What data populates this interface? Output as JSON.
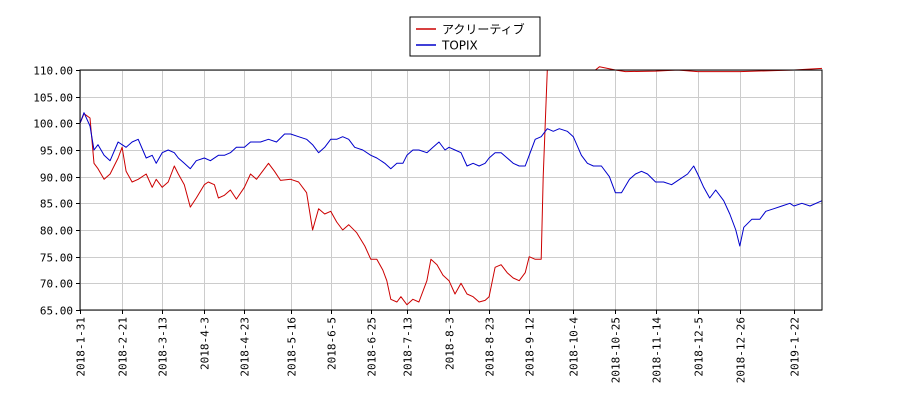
{
  "chart_data": {
    "type": "line",
    "ylim": [
      65,
      110
    ],
    "y_ticks": [
      "110.00",
      "105.00",
      "100.00",
      "95.00",
      "90.00",
      "85.00",
      "80.00",
      "75.00",
      "70.00",
      "65.00"
    ],
    "x_range": [
      "2018-01-31",
      "2019-02-05"
    ],
    "x_ticks": [
      "2018-1-31",
      "2018-2-21",
      "2018-3-13",
      "2018-4-3",
      "2018-4-23",
      "2018-5-16",
      "2018-6-5",
      "2018-6-25",
      "2018-7-13",
      "2018-8-3",
      "2018-8-23",
      "2018-9-12",
      "2018-10-4",
      "2018-10-25",
      "2018-11-14",
      "2018-12-5",
      "2018-12-26",
      "2019-1-22"
    ],
    "grid": true,
    "legend_position": "top-center",
    "series": [
      {
        "name": "アクリーティブ",
        "color": "#cc0000",
        "points": [
          [
            "2018-01-31",
            100.0
          ],
          [
            "2018-02-02",
            101.8
          ],
          [
            "2018-02-05",
            101.0
          ],
          [
            "2018-02-07",
            92.5
          ],
          [
            "2018-02-09",
            91.5
          ],
          [
            "2018-02-12",
            89.5
          ],
          [
            "2018-02-15",
            90.5
          ],
          [
            "2018-02-19",
            93.5
          ],
          [
            "2018-02-21",
            95.5
          ],
          [
            "2018-02-23",
            91.0
          ],
          [
            "2018-02-26",
            89.0
          ],
          [
            "2018-03-01",
            89.5
          ],
          [
            "2018-03-05",
            90.5
          ],
          [
            "2018-03-08",
            88.0
          ],
          [
            "2018-03-10",
            89.5
          ],
          [
            "2018-03-13",
            88.0
          ],
          [
            "2018-03-16",
            89.0
          ],
          [
            "2018-03-19",
            92.0
          ],
          [
            "2018-03-21",
            90.5
          ],
          [
            "2018-03-24",
            88.5
          ],
          [
            "2018-03-27",
            84.3
          ],
          [
            "2018-03-30",
            86.0
          ],
          [
            "2018-04-03",
            88.5
          ],
          [
            "2018-04-05",
            89.0
          ],
          [
            "2018-04-08",
            88.5
          ],
          [
            "2018-04-10",
            86.0
          ],
          [
            "2018-04-13",
            86.5
          ],
          [
            "2018-04-16",
            87.5
          ],
          [
            "2018-04-19",
            85.8
          ],
          [
            "2018-04-23",
            88.0
          ],
          [
            "2018-04-26",
            90.5
          ],
          [
            "2018-04-29",
            89.5
          ],
          [
            "2018-05-02",
            91.0
          ],
          [
            "2018-05-05",
            92.5
          ],
          [
            "2018-05-08",
            91.0
          ],
          [
            "2018-05-11",
            89.3
          ],
          [
            "2018-05-16",
            89.5
          ],
          [
            "2018-05-20",
            89.0
          ],
          [
            "2018-05-24",
            87.0
          ],
          [
            "2018-05-27",
            80.0
          ],
          [
            "2018-05-30",
            84.0
          ],
          [
            "2018-06-02",
            83.0
          ],
          [
            "2018-06-05",
            83.5
          ],
          [
            "2018-06-08",
            81.5
          ],
          [
            "2018-06-11",
            80.0
          ],
          [
            "2018-06-14",
            81.0
          ],
          [
            "2018-06-18",
            79.5
          ],
          [
            "2018-06-22",
            77.0
          ],
          [
            "2018-06-25",
            74.5
          ],
          [
            "2018-06-28",
            74.5
          ],
          [
            "2018-07-01",
            72.5
          ],
          [
            "2018-07-03",
            70.5
          ],
          [
            "2018-07-05",
            67.0
          ],
          [
            "2018-07-08",
            66.5
          ],
          [
            "2018-07-10",
            67.5
          ],
          [
            "2018-07-13",
            66.0
          ],
          [
            "2018-07-16",
            67.0
          ],
          [
            "2018-07-19",
            66.5
          ],
          [
            "2018-07-23",
            70.5
          ],
          [
            "2018-07-25",
            74.5
          ],
          [
            "2018-07-28",
            73.5
          ],
          [
            "2018-07-31",
            71.5
          ],
          [
            "2018-08-03",
            70.5
          ],
          [
            "2018-08-06",
            68.0
          ],
          [
            "2018-08-09",
            70.0
          ],
          [
            "2018-08-12",
            68.0
          ],
          [
            "2018-08-15",
            67.5
          ],
          [
            "2018-08-18",
            66.5
          ],
          [
            "2018-08-21",
            66.8
          ],
          [
            "2018-08-23",
            67.5
          ],
          [
            "2018-08-26",
            73.0
          ],
          [
            "2018-08-29",
            73.5
          ],
          [
            "2018-09-01",
            72.0
          ],
          [
            "2018-09-04",
            71.0
          ],
          [
            "2018-09-07",
            70.5
          ],
          [
            "2018-09-10",
            72.0
          ],
          [
            "2018-09-12",
            75.0
          ],
          [
            "2018-09-15",
            74.5
          ],
          [
            "2018-09-18",
            74.5
          ],
          [
            "2018-09-19",
            90.0
          ],
          [
            "2018-09-21",
            110.0
          ],
          [
            "2018-10-04",
            110.0
          ],
          [
            "2018-10-15",
            110.0
          ],
          [
            "2018-10-17",
            110.6
          ],
          [
            "2018-10-25",
            110.0
          ],
          [
            "2018-10-30",
            109.7
          ],
          [
            "2018-11-14",
            109.8
          ],
          [
            "2018-11-25",
            110.0
          ],
          [
            "2018-12-05",
            109.7
          ],
          [
            "2018-12-26",
            109.7
          ],
          [
            "2019-01-22",
            110.0
          ],
          [
            "2019-02-05",
            110.3
          ]
        ]
      },
      {
        "name": "TOPIX",
        "color": "#0000cc",
        "points": [
          [
            "2018-01-31",
            100.0
          ],
          [
            "2018-02-02",
            102.0
          ],
          [
            "2018-02-05",
            99.5
          ],
          [
            "2018-02-07",
            95.0
          ],
          [
            "2018-02-09",
            96.0
          ],
          [
            "2018-02-12",
            94.0
          ],
          [
            "2018-02-15",
            93.0
          ],
          [
            "2018-02-19",
            96.5
          ],
          [
            "2018-02-21",
            96.0
          ],
          [
            "2018-02-23",
            95.5
          ],
          [
            "2018-02-26",
            96.5
          ],
          [
            "2018-03-01",
            97.0
          ],
          [
            "2018-03-05",
            93.5
          ],
          [
            "2018-03-08",
            94.0
          ],
          [
            "2018-03-10",
            92.5
          ],
          [
            "2018-03-13",
            94.5
          ],
          [
            "2018-03-16",
            95.0
          ],
          [
            "2018-03-19",
            94.5
          ],
          [
            "2018-03-21",
            93.5
          ],
          [
            "2018-03-24",
            92.5
          ],
          [
            "2018-03-27",
            91.5
          ],
          [
            "2018-03-30",
            93.0
          ],
          [
            "2018-04-03",
            93.5
          ],
          [
            "2018-04-06",
            93.0
          ],
          [
            "2018-04-10",
            94.0
          ],
          [
            "2018-04-13",
            94.0
          ],
          [
            "2018-04-16",
            94.5
          ],
          [
            "2018-04-19",
            95.5
          ],
          [
            "2018-04-23",
            95.5
          ],
          [
            "2018-04-26",
            96.5
          ],
          [
            "2018-05-01",
            96.5
          ],
          [
            "2018-05-05",
            97.0
          ],
          [
            "2018-05-09",
            96.5
          ],
          [
            "2018-05-13",
            98.0
          ],
          [
            "2018-05-16",
            98.0
          ],
          [
            "2018-05-20",
            97.5
          ],
          [
            "2018-05-24",
            97.0
          ],
          [
            "2018-05-27",
            96.0
          ],
          [
            "2018-05-30",
            94.5
          ],
          [
            "2018-06-02",
            95.5
          ],
          [
            "2018-06-05",
            97.0
          ],
          [
            "2018-06-08",
            97.0
          ],
          [
            "2018-06-11",
            97.5
          ],
          [
            "2018-06-14",
            97.0
          ],
          [
            "2018-06-17",
            95.5
          ],
          [
            "2018-06-21",
            95.0
          ],
          [
            "2018-06-25",
            94.0
          ],
          [
            "2018-06-28",
            93.5
          ],
          [
            "2018-07-02",
            92.5
          ],
          [
            "2018-07-05",
            91.5
          ],
          [
            "2018-07-08",
            92.5
          ],
          [
            "2018-07-11",
            92.5
          ],
          [
            "2018-07-13",
            94.0
          ],
          [
            "2018-07-16",
            95.0
          ],
          [
            "2018-07-19",
            95.0
          ],
          [
            "2018-07-23",
            94.5
          ],
          [
            "2018-07-26",
            95.5
          ],
          [
            "2018-07-29",
            96.5
          ],
          [
            "2018-08-01",
            95.0
          ],
          [
            "2018-08-03",
            95.5
          ],
          [
            "2018-08-06",
            95.0
          ],
          [
            "2018-08-09",
            94.5
          ],
          [
            "2018-08-12",
            92.0
          ],
          [
            "2018-08-15",
            92.5
          ],
          [
            "2018-08-18",
            92.0
          ],
          [
            "2018-08-21",
            92.5
          ],
          [
            "2018-08-23",
            93.5
          ],
          [
            "2018-08-26",
            94.5
          ],
          [
            "2018-08-29",
            94.5
          ],
          [
            "2018-09-01",
            93.5
          ],
          [
            "2018-09-04",
            92.5
          ],
          [
            "2018-09-07",
            92.0
          ],
          [
            "2018-09-10",
            92.0
          ],
          [
            "2018-09-12",
            94.0
          ],
          [
            "2018-09-15",
            97.0
          ],
          [
            "2018-09-18",
            97.5
          ],
          [
            "2018-09-21",
            99.0
          ],
          [
            "2018-09-24",
            98.5
          ],
          [
            "2018-09-27",
            99.0
          ],
          [
            "2018-10-01",
            98.5
          ],
          [
            "2018-10-04",
            97.5
          ],
          [
            "2018-10-08",
            94.0
          ],
          [
            "2018-10-11",
            92.5
          ],
          [
            "2018-10-14",
            92.0
          ],
          [
            "2018-10-18",
            92.0
          ],
          [
            "2018-10-22",
            90.0
          ],
          [
            "2018-10-25",
            87.0
          ],
          [
            "2018-10-28",
            87.0
          ],
          [
            "2018-11-01",
            89.5
          ],
          [
            "2018-11-04",
            90.5
          ],
          [
            "2018-11-07",
            91.0
          ],
          [
            "2018-11-10",
            90.5
          ],
          [
            "2018-11-14",
            89.0
          ],
          [
            "2018-11-18",
            89.0
          ],
          [
            "2018-11-22",
            88.5
          ],
          [
            "2018-11-26",
            89.5
          ],
          [
            "2018-11-30",
            90.5
          ],
          [
            "2018-12-03",
            92.0
          ],
          [
            "2018-12-05",
            90.5
          ],
          [
            "2018-12-08",
            88.0
          ],
          [
            "2018-12-11",
            86.0
          ],
          [
            "2018-12-14",
            87.5
          ],
          [
            "2018-12-18",
            85.5
          ],
          [
            "2018-12-21",
            83.0
          ],
          [
            "2018-12-24",
            80.0
          ],
          [
            "2018-12-26",
            77.0
          ],
          [
            "2018-12-28",
            80.5
          ],
          [
            "2019-01-01",
            82.0
          ],
          [
            "2019-01-05",
            82.0
          ],
          [
            "2019-01-08",
            83.5
          ],
          [
            "2019-01-12",
            84.0
          ],
          [
            "2019-01-16",
            84.5
          ],
          [
            "2019-01-20",
            85.0
          ],
          [
            "2019-01-22",
            84.5
          ],
          [
            "2019-01-26",
            85.0
          ],
          [
            "2019-01-30",
            84.5
          ],
          [
            "2019-02-05",
            85.5
          ]
        ]
      }
    ]
  }
}
